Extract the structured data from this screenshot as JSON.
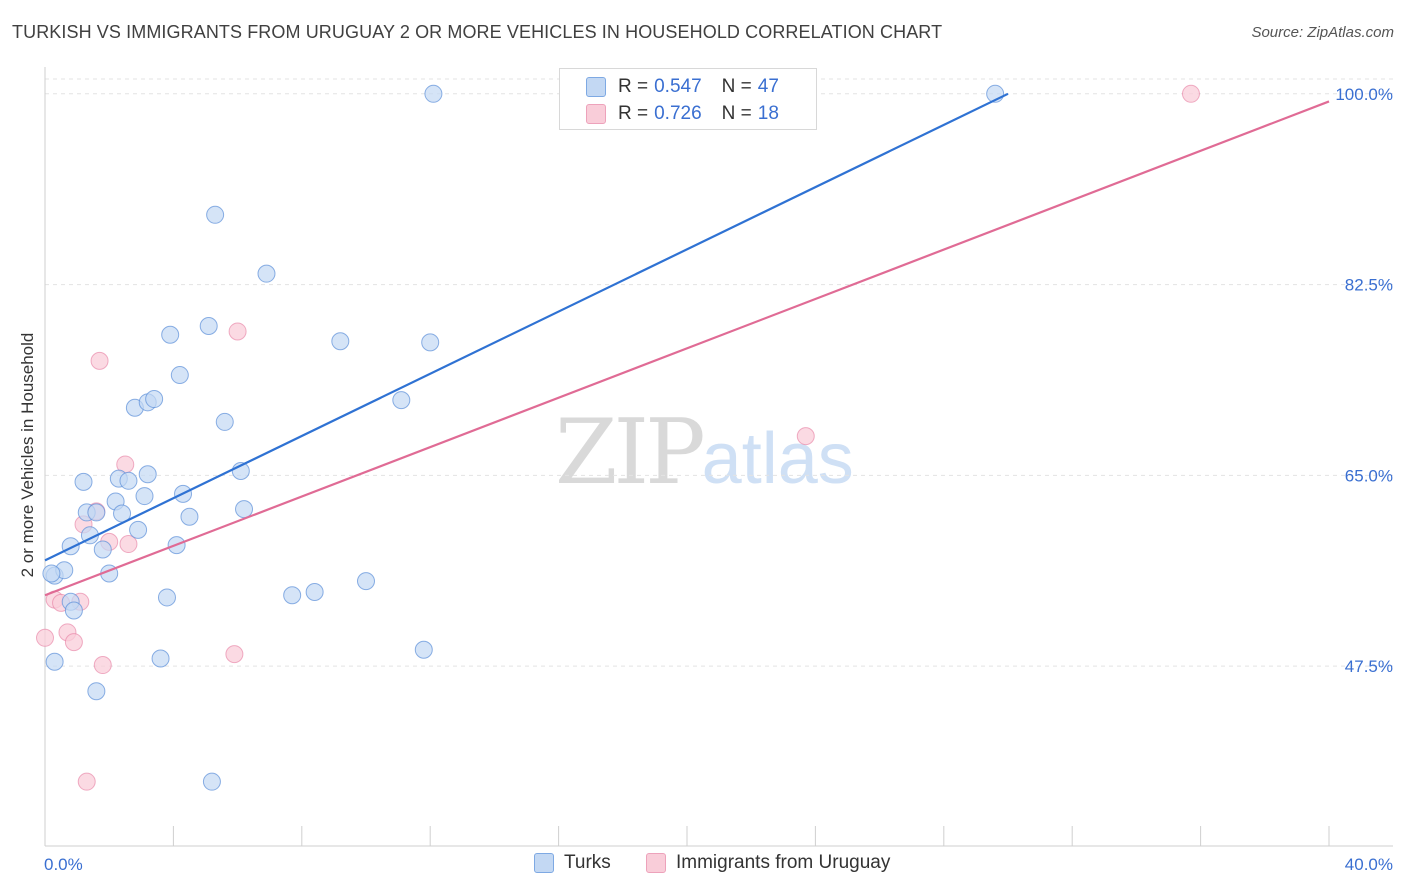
{
  "header": {
    "title": "TURKISH VS IMMIGRANTS FROM URUGUAY 2 OR MORE VEHICLES IN HOUSEHOLD CORRELATION CHART",
    "source": "Source: ZipAtlas.com"
  },
  "watermark": {
    "zip": "ZIP",
    "atlas": "atlas"
  },
  "legend_top": [
    {
      "r_label": "R =",
      "r_value": "0.547",
      "n_label": "N =",
      "n_value": "47",
      "color": "#a8c8f0"
    },
    {
      "r_label": "R =",
      "r_value": "0.726",
      "n_label": "N =",
      "n_value": "18",
      "color": "#f5b8cb"
    }
  ],
  "legend_bottom": {
    "turks": "Turks",
    "uruguay": "Immigrants from Uruguay"
  },
  "chart_data": {
    "type": "scatter",
    "title": "TURKISH VS IMMIGRANTS FROM URUGUAY 2 OR MORE VEHICLES IN HOUSEHOLD CORRELATION CHART",
    "xlabel": "",
    "ylabel": "2 or more Vehicles in Household",
    "xlim": [
      0,
      40
    ],
    "ylim": [
      31,
      102
    ],
    "x_tick_labels": [
      "0.0%",
      "40.0%"
    ],
    "y_ticks": [
      47.5,
      65.0,
      82.5,
      100.0
    ],
    "y_tick_labels": [
      "47.5%",
      "65.0%",
      "82.5%",
      "100.0%"
    ],
    "colors": {
      "turks": "#5b8fd9",
      "turks_fill": "#c3d8f3",
      "uruguay": "#e67ba0",
      "uruguay_fill": "#f9cdd9",
      "turks_line": "#2f72d3",
      "uruguay_line": "#e06b95"
    },
    "series": [
      {
        "name": "Turks",
        "points": [
          [
            0.3,
            55.8
          ],
          [
            0.6,
            56.3
          ],
          [
            0.3,
            47.9
          ],
          [
            0.8,
            53.4
          ],
          [
            0.9,
            52.6
          ],
          [
            0.8,
            58.5
          ],
          [
            1.2,
            64.4
          ],
          [
            1.3,
            61.6
          ],
          [
            1.4,
            59.5
          ],
          [
            1.6,
            45.2
          ],
          [
            1.6,
            61.6
          ],
          [
            1.8,
            58.2
          ],
          [
            2.0,
            56.0
          ],
          [
            2.2,
            62.6
          ],
          [
            2.3,
            64.7
          ],
          [
            2.4,
            61.5
          ],
          [
            2.6,
            64.5
          ],
          [
            2.8,
            71.2
          ],
          [
            2.9,
            60.0
          ],
          [
            3.1,
            63.1
          ],
          [
            3.2,
            65.1
          ],
          [
            3.2,
            71.7
          ],
          [
            3.4,
            72.0
          ],
          [
            3.6,
            48.2
          ],
          [
            3.8,
            53.8
          ],
          [
            3.9,
            77.9
          ],
          [
            4.1,
            58.6
          ],
          [
            4.2,
            74.2
          ],
          [
            4.3,
            63.3
          ],
          [
            4.5,
            61.2
          ],
          [
            5.1,
            78.7
          ],
          [
            5.2,
            36.9
          ],
          [
            5.3,
            88.9
          ],
          [
            5.6,
            69.9
          ],
          [
            6.1,
            65.4
          ],
          [
            6.2,
            61.9
          ],
          [
            6.9,
            83.5
          ],
          [
            7.7,
            54.0
          ],
          [
            8.4,
            54.3
          ],
          [
            9.2,
            77.3
          ],
          [
            10.0,
            55.3
          ],
          [
            11.1,
            71.9
          ],
          [
            11.8,
            49.0
          ],
          [
            12.0,
            77.2
          ],
          [
            12.1,
            100.0
          ],
          [
            29.6,
            100.0
          ],
          [
            0.2,
            56.0
          ]
        ]
      },
      {
        "name": "Immigrants from Uruguay",
        "points": [
          [
            0.0,
            50.1
          ],
          [
            0.3,
            53.6
          ],
          [
            0.5,
            53.3
          ],
          [
            0.7,
            50.6
          ],
          [
            0.9,
            49.7
          ],
          [
            1.1,
            53.4
          ],
          [
            1.2,
            60.5
          ],
          [
            1.3,
            36.9
          ],
          [
            1.6,
            61.7
          ],
          [
            1.7,
            75.5
          ],
          [
            1.8,
            47.6
          ],
          [
            2.0,
            58.9
          ],
          [
            2.5,
            66.0
          ],
          [
            2.6,
            58.7
          ],
          [
            5.9,
            48.6
          ],
          [
            6.0,
            78.2
          ],
          [
            23.7,
            68.6
          ],
          [
            35.7,
            100.0
          ]
        ]
      }
    ],
    "trendlines": [
      {
        "name": "Turks",
        "x": [
          0.0,
          30.0
        ],
        "y": [
          57.2,
          100.0
        ]
      },
      {
        "name": "Immigrants from Uruguay",
        "x": [
          0.0,
          40.0
        ],
        "y": [
          54.0,
          99.3
        ]
      }
    ]
  }
}
